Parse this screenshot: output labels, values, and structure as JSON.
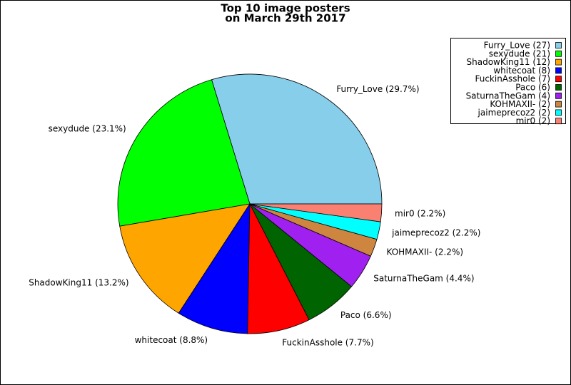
{
  "chart_data": {
    "type": "pie",
    "title": "Top 10 image posters",
    "subtitle": "on March 29th 2017",
    "labels": [
      "Furry_Love (29.7%)",
      "sexydude (23.1%)",
      "ShadowKing11 (13.2%)",
      "whitecoat (8.8%)",
      "FuckinAsshole (7.7%)",
      "Paco (6.6%)",
      "SaturnaTheGam (4.4%)",
      "KOHMAXII- (2.2%)",
      "jaimeprecoz2 (2.2%)",
      "mir0 (2.2%)"
    ],
    "legend": [
      "Furry_Love (27)",
      "sexydude (21)",
      "ShadowKing11 (12)",
      "whitecoat (8)",
      "FuckinAsshole (7)",
      "Paco (6)",
      "SaturnaTheGam (4)",
      "KOHMAXII- (2)",
      "jaimeprecoz2 (2)",
      "mir0 (2)"
    ],
    "values": [
      27,
      21,
      12,
      8,
      7,
      6,
      4,
      2,
      2,
      2
    ],
    "colors": [
      "#87ceeb",
      "#00ff00",
      "#ffa500",
      "#0000ff",
      "#ff0000",
      "#006400",
      "#a020f0",
      "#cd853f",
      "#00ffff",
      "#fa8072"
    ],
    "legend_position": "upper right"
  }
}
